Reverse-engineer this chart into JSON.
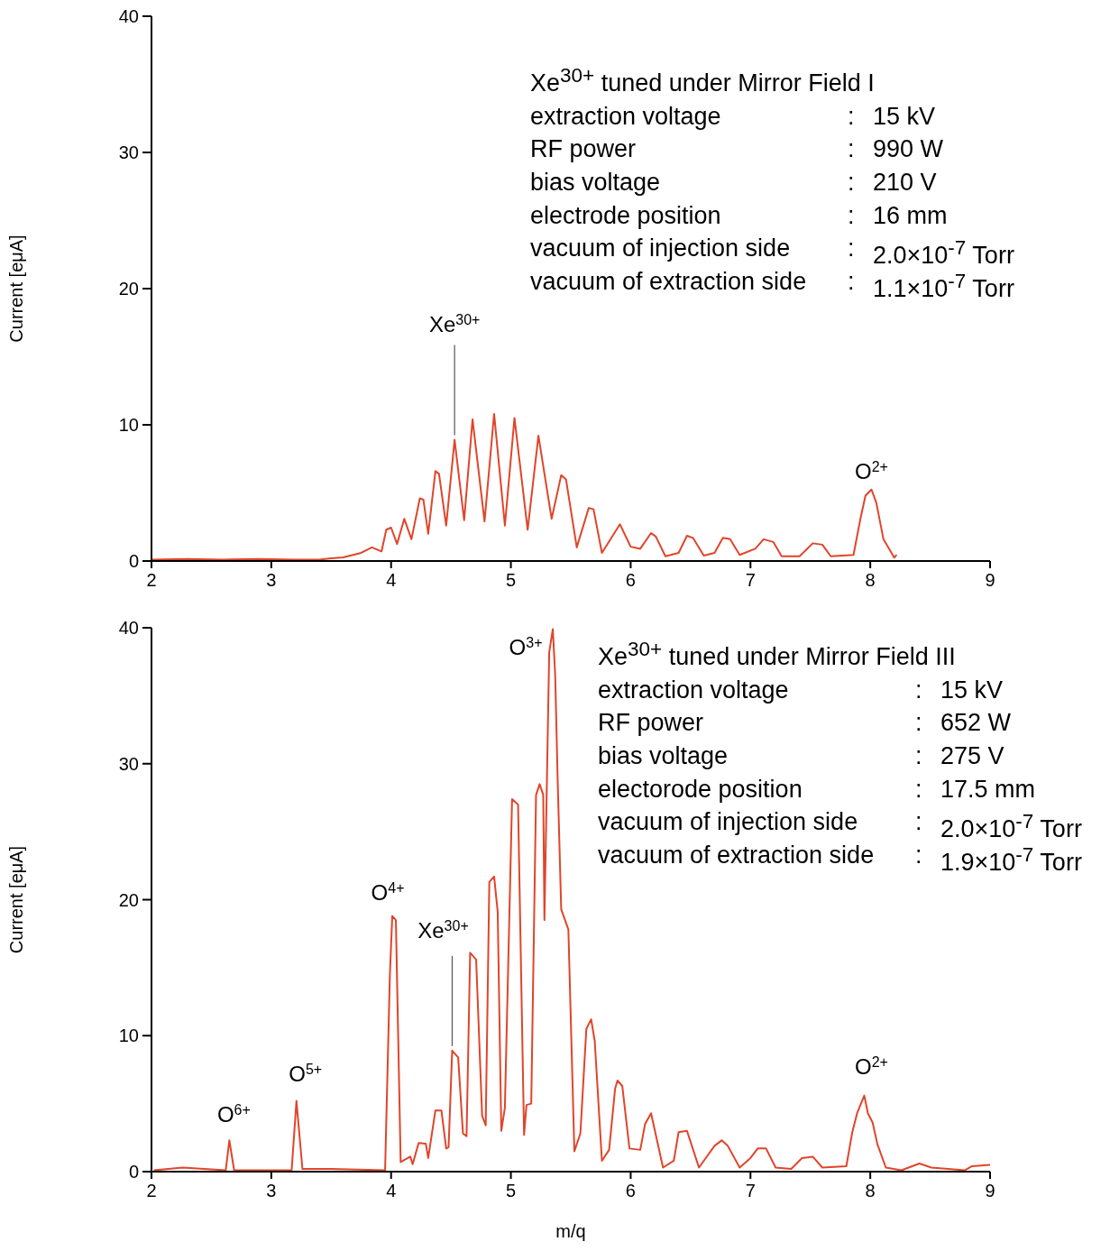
{
  "chart_data": [
    {
      "type": "line",
      "ylabel": "Current [eμA]",
      "xlim": [
        2,
        9
      ],
      "xticks": [
        2,
        3,
        4,
        5,
        6,
        7,
        8,
        9
      ],
      "ylim": [
        0,
        40
      ],
      "yticks": [
        0,
        10,
        20,
        30,
        40
      ],
      "annotations": [
        "Xe$^{30+}$ tuned under Mirror Field I",
        "extraction voltage : 15 kV",
        "RF power : 990 W",
        "bias voltage : 210 V",
        "electrode position : 16 mm",
        "vacuum of injection side : 2.0×10$^{-7}$ Torr",
        "vacuum of extraction side : 1.1×10$^{-7}$ Torr",
        {
          "text": "Xe$^{30+}$",
          "x": 4.53,
          "y": 8.9
        },
        {
          "text": "O$^{2+}$",
          "x": 8.01,
          "y": 5.25
        }
      ],
      "series": [
        {
          "color": "#e0452b",
          "x": [
            2.0,
            2.3,
            2.6,
            2.9,
            3.2,
            3.4,
            3.5,
            3.6,
            3.75,
            3.84,
            3.92,
            3.96,
            4.0,
            4.05,
            4.11,
            4.17,
            4.24,
            4.27,
            4.31,
            4.37,
            4.4,
            4.46,
            4.53,
            4.61,
            4.68,
            4.78,
            4.86,
            4.95,
            5.03,
            5.14,
            5.23,
            5.34,
            5.42,
            5.46,
            5.55,
            5.65,
            5.69,
            5.76,
            5.91,
            6.0,
            6.08,
            6.17,
            6.21,
            6.29,
            6.4,
            6.47,
            6.52,
            6.61,
            6.7,
            6.77,
            6.83,
            6.91,
            7.04,
            7.11,
            7.19,
            7.26,
            7.41,
            7.52,
            7.6,
            7.67,
            7.86,
            7.92,
            7.96,
            8.01,
            8.05,
            8.11,
            8.2,
            8.22
          ],
          "values": [
            0.1,
            0.15,
            0.1,
            0.15,
            0.1,
            0.1,
            0.2,
            0.26,
            0.6,
            1.0,
            0.7,
            2.3,
            2.45,
            1.25,
            3.1,
            1.6,
            4.6,
            4.5,
            2.0,
            6.6,
            6.4,
            2.6,
            8.9,
            3.0,
            10.4,
            2.9,
            10.8,
            2.6,
            10.5,
            2.3,
            9.2,
            3.1,
            6.3,
            6.0,
            1.0,
            3.9,
            3.8,
            0.6,
            2.7,
            1.05,
            0.9,
            2.05,
            1.8,
            0.35,
            0.6,
            1.85,
            1.7,
            0.4,
            0.6,
            1.7,
            1.6,
            0.45,
            0.9,
            1.6,
            1.4,
            0.35,
            0.35,
            1.3,
            1.2,
            0.35,
            0.45,
            3.2,
            4.8,
            5.25,
            4.3,
            1.6,
            0.25,
            0.45
          ]
        }
      ]
    },
    {
      "type": "line",
      "xlabel": "m/q",
      "ylabel": "Current [eμA]",
      "xlim": [
        2,
        9
      ],
      "xticks": [
        2,
        3,
        4,
        5,
        6,
        7,
        8,
        9
      ],
      "ylim": [
        0,
        40
      ],
      "yticks": [
        0,
        10,
        20,
        30,
        40
      ],
      "annotations": [
        "Xe$^{30+}$ tuned under Mirror Field III",
        "extraction voltage : 15 kV",
        "RF power : 652 W",
        "bias voltage : 275 V",
        "electorode position : 17.5 mm",
        "vacuum of injection side : 2.0×10$^{-7}$ Torr",
        "vacuum of extraction side : 1.9×10$^{-7}$ Torr",
        {
          "text": "O$^{6+}$",
          "x": 2.65,
          "y": 2.3
        },
        {
          "text": "O$^{5+}$",
          "x": 3.21,
          "y": 5.2
        },
        {
          "text": "O$^{4+}$",
          "x": 4.01,
          "y": 18.8
        },
        {
          "text": "Xe$^{30+}$",
          "x": 4.51,
          "y": 8.9
        },
        {
          "text": "O$^{3+}$",
          "x": 5.35,
          "y": 39.9
        },
        {
          "text": "O$^{2+}$",
          "x": 7.95,
          "y": 5.6
        }
      ],
      "series": [
        {
          "color": "#e0452b",
          "x": [
            2.02,
            2.26,
            2.62,
            2.65,
            2.69,
            3.17,
            3.21,
            3.26,
            3.5,
            3.95,
            3.99,
            4.01,
            4.04,
            4.08,
            4.16,
            4.18,
            4.23,
            4.29,
            4.31,
            4.37,
            4.42,
            4.46,
            4.48,
            4.51,
            4.56,
            4.6,
            4.63,
            4.66,
            4.71,
            4.76,
            4.79,
            4.82,
            4.86,
            4.89,
            4.92,
            4.95,
            5.01,
            5.06,
            5.11,
            5.13,
            5.17,
            5.21,
            5.24,
            5.27,
            5.28,
            5.32,
            5.35,
            5.37,
            5.39,
            5.42,
            5.46,
            5.48,
            5.53,
            5.58,
            5.63,
            5.67,
            5.7,
            5.76,
            5.82,
            5.87,
            5.89,
            5.93,
            5.99,
            6.08,
            6.12,
            6.17,
            6.27,
            6.36,
            6.4,
            6.47,
            6.57,
            6.7,
            6.76,
            6.81,
            6.91,
            7.0,
            7.06,
            7.13,
            7.21,
            7.34,
            7.43,
            7.52,
            7.6,
            7.8,
            7.85,
            7.89,
            7.95,
            7.98,
            8.02,
            8.06,
            8.13,
            8.26,
            8.41,
            8.51,
            8.79,
            8.85,
            9.0
          ],
          "values": [
            0.1,
            0.3,
            0.1,
            2.3,
            0.1,
            0.1,
            5.2,
            0.2,
            0.2,
            0.1,
            14.5,
            18.8,
            18.5,
            0.7,
            1.1,
            0.55,
            2.1,
            2.05,
            1.0,
            4.5,
            4.5,
            1.7,
            1.8,
            8.9,
            8.4,
            2.8,
            2.6,
            16.1,
            15.6,
            4.1,
            3.4,
            21.3,
            21.7,
            19.1,
            3.0,
            4.7,
            27.4,
            27.0,
            2.7,
            4.9,
            5.0,
            27.7,
            28.5,
            27.7,
            18.5,
            38.2,
            39.9,
            36.5,
            29.0,
            19.3,
            18.3,
            17.8,
            1.5,
            2.8,
            10.5,
            11.2,
            9.6,
            0.8,
            1.6,
            6.1,
            6.7,
            6.3,
            1.7,
            1.6,
            3.5,
            4.3,
            0.3,
            0.8,
            2.9,
            3.0,
            0.3,
            1.9,
            2.3,
            1.9,
            0.3,
            1.0,
            1.7,
            1.7,
            0.3,
            0.2,
            1.0,
            1.1,
            0.3,
            0.4,
            2.9,
            4.3,
            5.6,
            4.3,
            3.6,
            2.0,
            0.3,
            0.1,
            0.6,
            0.3,
            0.1,
            0.4,
            0.5
          ]
        }
      ]
    }
  ]
}
